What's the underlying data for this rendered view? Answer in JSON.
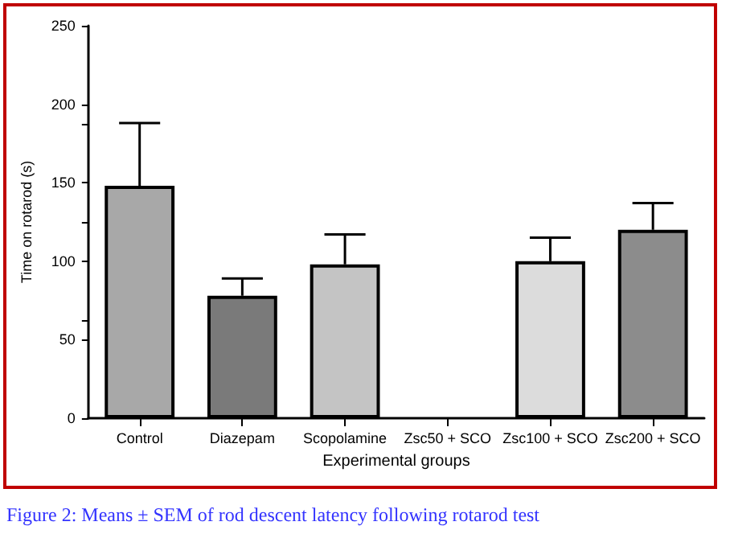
{
  "chart_data": {
    "type": "bar",
    "xlabel": "Experimental groups",
    "ylabel": "Time on rotarod (s)",
    "categories": [
      "Control",
      "Diazepam",
      "Scopolamine",
      "Zsc50 + SCO",
      "Zsc100 + SCO",
      "Zsc200 + SCO"
    ],
    "values": [
      148,
      78,
      98,
      null,
      100,
      120
    ],
    "errors": [
      [
        148,
        188
      ],
      [
        78,
        89
      ],
      [
        98,
        117
      ],
      null,
      [
        100,
        115
      ],
      [
        120,
        137
      ]
    ],
    "colors": [
      "#a8a8a8",
      "#7a7a7a",
      "#c4c4c4",
      "#ffffff",
      "#dcdcdc",
      "#8c8c8c"
    ],
    "ylim": [
      0,
      250
    ],
    "yticks": [
      0,
      50,
      100,
      150,
      200,
      250,
      {
        "value": 62.5,
        "label": null
      },
      {
        "value": 125,
        "label": null
      },
      {
        "value": 187.5,
        "label": null
      }
    ],
    "grid": false,
    "annotations": [
      "Figure 2: Means ± SEM of rod descent latency following rotarod test"
    ]
  }
}
